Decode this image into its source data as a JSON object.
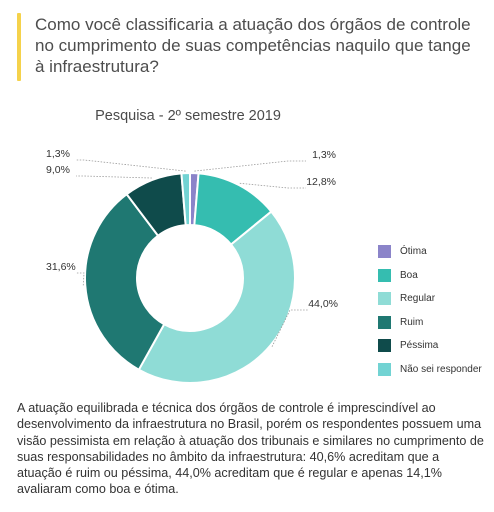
{
  "header": {
    "question": "Como você classificaria a atuação dos órgãos de controle no cumprimento de suas competências naquilo que tange à infraestrutura?",
    "accent_color": "#f5d24b"
  },
  "chart_data": {
    "type": "pie",
    "title": "Pesquisa - 2º semestre 2019",
    "categories": [
      "Ótima",
      "Boa",
      "Regular",
      "Ruim",
      "Péssima",
      "Não sei responder"
    ],
    "values": [
      1.3,
      12.8,
      44.0,
      31.6,
      9.0,
      1.3
    ],
    "value_labels": [
      "1,3%",
      "12,8%",
      "44,0%",
      "31,6%",
      "9,0%",
      "1,3%"
    ],
    "colors": [
      "#8b84c9",
      "#35bdb0",
      "#8fdcd6",
      "#1f7872",
      "#0f4b4b",
      "#72d3d3"
    ],
    "donut": true,
    "legend": {
      "position": "right"
    }
  },
  "summary": "A atuação equilibrada e técnica dos órgãos de controle é imprescindível ao desenvolvimento da infraestrutura no Brasil, porém os respondentes possuem uma visão pessimista em relação à atuação dos tribunais e similares no cumprimento de suas responsabilidades no âmbito da infraestrutura: 40,6% acreditam que a atuação é ruim ou péssima, 44,0% acreditam que é regular e apenas 14,1% avaliaram como boa e ótima."
}
